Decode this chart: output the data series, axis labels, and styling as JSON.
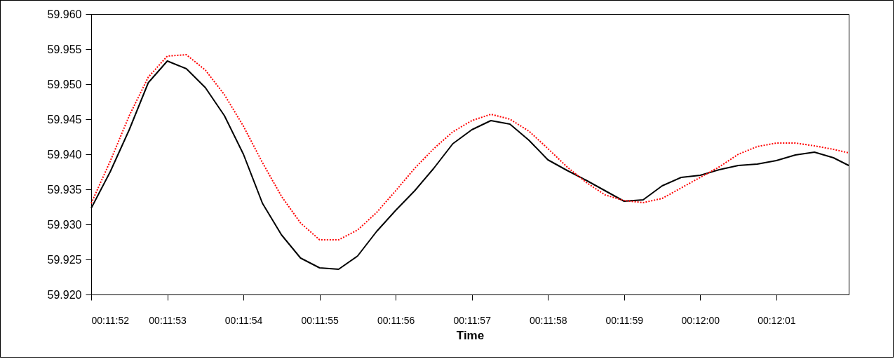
{
  "chart_data": {
    "type": "line",
    "xlabel": "Time",
    "x": [
      0.1977778,
      0.1978472,
      0.1979167,
      0.1979861,
      0.1980556,
      0.198125,
      0.1981944,
      0.1982639,
      0.1983333,
      0.1984028,
      0.1984722,
      0.1985417,
      0.1986111,
      0.1986806,
      0.19875,
      0.1988194,
      0.1988889,
      0.1989583,
      0.1990278,
      0.1990972,
      0.1991667,
      0.1992361,
      0.1993056,
      0.199375,
      0.1994444,
      0.1995139,
      0.1995833,
      0.1996528,
      0.1997222,
      0.1997917,
      0.1998611,
      0.1999306,
      0.2,
      0.2000694,
      0.2001389,
      0.2002083,
      0.2002778,
      0.2003472,
      0.2004167,
      0.2004861,
      0.2005417
    ],
    "series": [
      {
        "color": "#000000",
        "line_style": "solid",
        "values": [
          59.9323,
          59.9375,
          59.9435,
          59.9502,
          59.9533,
          59.9522,
          59.9495,
          59.9455,
          59.94,
          59.933,
          59.9285,
          59.9252,
          59.9238,
          59.9236,
          59.9255,
          59.929,
          59.932,
          59.9348,
          59.938,
          59.9415,
          59.9435,
          59.9448,
          59.9443,
          59.942,
          59.9392,
          59.9377,
          59.9363,
          59.9348,
          59.9333,
          59.9335,
          59.9355,
          59.9367,
          59.937,
          59.9378,
          59.9384,
          59.9386,
          59.9391,
          59.9399,
          59.9403,
          59.9395,
          59.9384
        ]
      },
      {
        "color": "#ff0000",
        "line_style": "dotted",
        "values": [
          59.933,
          59.939,
          59.9455,
          59.951,
          59.954,
          59.9542,
          59.952,
          59.9485,
          59.944,
          59.9388,
          59.934,
          59.9302,
          59.9278,
          59.9278,
          59.9292,
          59.9317,
          59.9348,
          59.938,
          59.9408,
          59.9432,
          59.9448,
          59.9457,
          59.945,
          59.9433,
          59.9408,
          59.9382,
          59.936,
          59.9342,
          59.9334,
          59.9331,
          59.9337,
          59.9352,
          59.9367,
          59.9382,
          59.94,
          59.9411,
          59.9416,
          59.9416,
          59.9412,
          59.9407,
          59.9402
        ]
      }
    ],
    "xlim": [
      0.1977778,
      0.2005417
    ],
    "xticks": [
      {
        "value": 0.1977778,
        "label": "00:11:52"
      },
      {
        "value": 0.1980556,
        "label": "00:11:53"
      },
      {
        "value": 0.1983333,
        "label": "00:11:54"
      },
      {
        "value": 0.1986111,
        "label": "00:11:55"
      },
      {
        "value": 0.1988889,
        "label": "00:11:56"
      },
      {
        "value": 0.1991667,
        "label": "00:11:57"
      },
      {
        "value": 0.1994444,
        "label": "00:11:58"
      },
      {
        "value": 0.1997222,
        "label": "00:11:59"
      },
      {
        "value": 0.2,
        "label": "00:12:00"
      },
      {
        "value": 0.2002778,
        "label": "00:12:01"
      }
    ],
    "ylim": [
      59.92,
      59.96
    ],
    "yticks": [
      {
        "value": 59.92,
        "label": "59.920"
      },
      59.925,
      {
        "value": 59.93,
        "label": "59.930"
      },
      59.935,
      {
        "value": 59.94,
        "label": "59.940"
      },
      59.945,
      {
        "value": 59.95,
        "label": "59.950"
      },
      59.955,
      {
        "value": 59.96,
        "label": "59.960"
      }
    ],
    "grid": false
  }
}
